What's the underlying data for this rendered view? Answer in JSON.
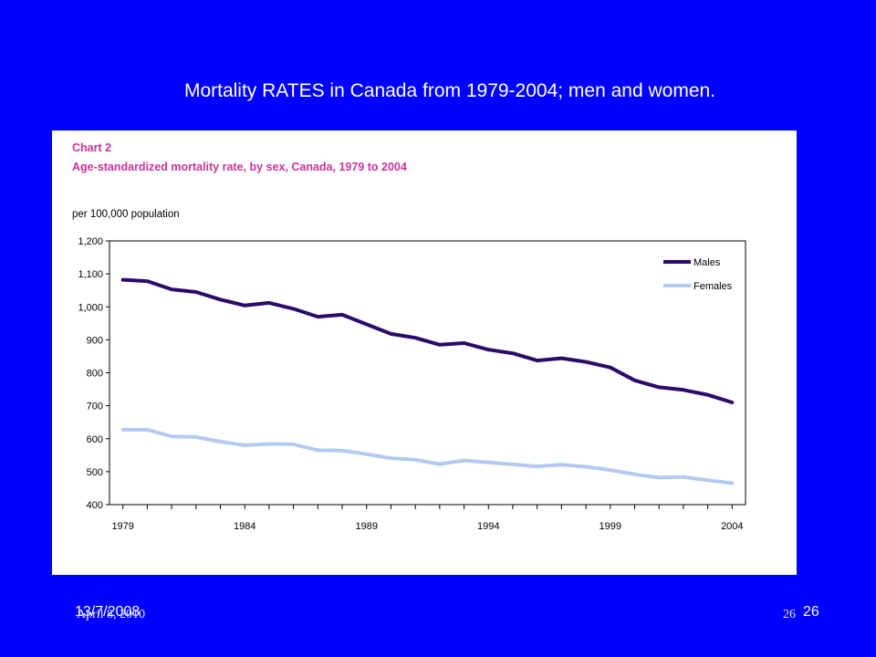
{
  "slide": {
    "title": "Mortality RATES in Canada from 1979-2004; men and women.",
    "footer_date_1": "13/7/2008",
    "footer_date_2": "April 8, 2010",
    "footer_page_1": "26",
    "footer_page_2": "26"
  },
  "colors": {
    "background": "#0000ff",
    "males": "#2b0a6b",
    "females": "#b3c9f2",
    "chart_heading": "#cc3399"
  },
  "chart_data": {
    "type": "line",
    "label": "Chart 2",
    "title": "Age-standardized mortality rate, by sex, Canada, 1979 to 2004",
    "ylabel": "per 100,000 population",
    "xlabel": "",
    "ylim": [
      400,
      1200
    ],
    "yticks": [
      "400",
      "500",
      "600",
      "700",
      "800",
      "900",
      "1,000",
      "1,100",
      "1,200"
    ],
    "ytick_values": [
      400,
      500,
      600,
      700,
      800,
      900,
      1000,
      1100,
      1200
    ],
    "x": [
      1979,
      1980,
      1981,
      1982,
      1983,
      1984,
      1985,
      1986,
      1987,
      1988,
      1989,
      1990,
      1991,
      1992,
      1993,
      1994,
      1995,
      1996,
      1997,
      1998,
      1999,
      2000,
      2001,
      2002,
      2003,
      2004
    ],
    "xticks": [
      "1979",
      "1984",
      "1989",
      "1994",
      "1999",
      "2004"
    ],
    "xtick_values": [
      1979,
      1984,
      1989,
      1994,
      1999,
      2004
    ],
    "legend_position": "top-right",
    "grid": false,
    "series": [
      {
        "name": "Males",
        "values": [
          1082,
          1078,
          1053,
          1045,
          1022,
          1004,
          1012,
          994,
          970,
          976,
          947,
          918,
          906,
          885,
          890,
          870,
          859,
          837,
          844,
          833,
          816,
          777,
          756,
          748,
          733,
          710
        ]
      },
      {
        "name": "Females",
        "values": [
          627,
          627,
          607,
          605,
          591,
          580,
          584,
          583,
          565,
          564,
          553,
          541,
          536,
          523,
          534,
          528,
          522,
          516,
          521,
          515,
          505,
          492,
          482,
          484,
          474,
          465
        ]
      }
    ]
  }
}
